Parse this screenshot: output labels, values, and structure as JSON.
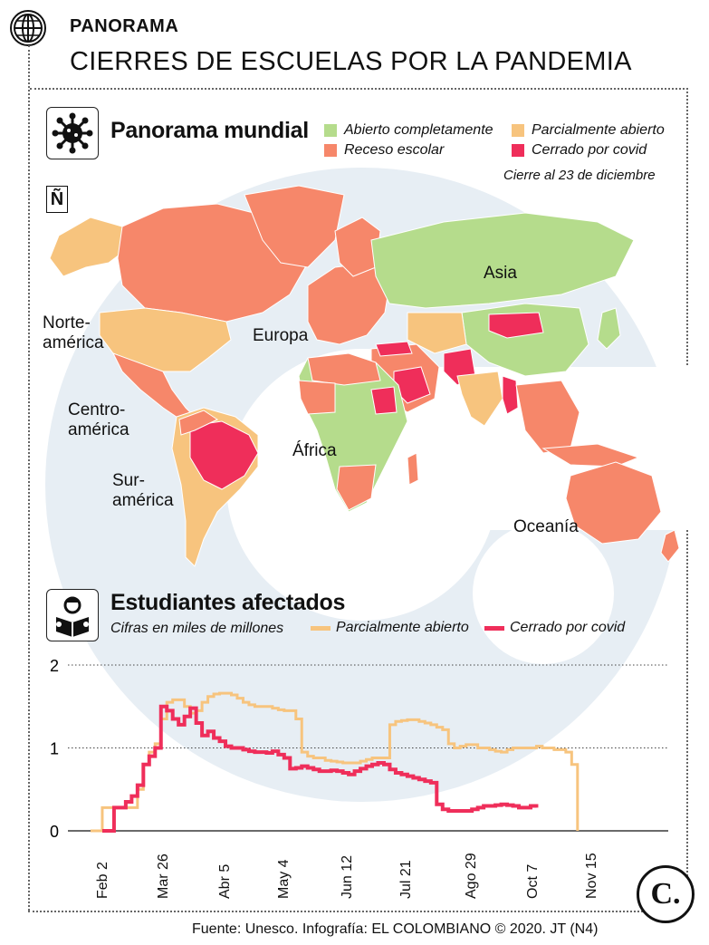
{
  "header": {
    "section": "PANORAMA",
    "title": "CIERRES DE ESCUELAS POR LA PANDEMIA"
  },
  "map": {
    "title": "Panorama mundial",
    "compass": "Ñ",
    "legend": [
      {
        "label": "Abierto completamente",
        "color": "#b5dc8c"
      },
      {
        "label": "Parcialmente abierto",
        "color": "#f7c47e"
      },
      {
        "label": "Receso escolar",
        "color": "#f6876a"
      },
      {
        "label": "Cerrado por covid",
        "color": "#ef2e5a"
      }
    ],
    "note": "Cierre al 23 de diciembre",
    "regions": {
      "north_america": "Norte-\namérica",
      "central_america": "Centro-\namérica",
      "south_america": "Sur-\namérica",
      "europe": "Europa",
      "africa": "África",
      "asia": "Asia",
      "oceania": "Oceanía"
    }
  },
  "chart": {
    "title": "Estudiantes afectados",
    "units": "Cifras en miles de millones"
  },
  "chart_data": {
    "type": "line",
    "title": "Estudiantes afectados",
    "subtitle": "Cifras en miles de millones",
    "ylim": [
      0,
      2
    ],
    "yticks": [
      "0",
      "1",
      "2"
    ],
    "xticks": [
      "Feb 2",
      "Mar 26",
      "Abr 5",
      "May 4",
      "Jun 12",
      "Jul 21",
      "Ago 29",
      "Oct 7",
      "Nov 15"
    ],
    "legend_position": "top",
    "grid": "dotted horizontal at 1 and 2",
    "series": [
      {
        "name": "Parcialmente abierto",
        "color": "#f7c47e",
        "x": [
          0,
          2,
          6,
          8,
          9,
          10,
          11,
          12,
          13,
          14,
          15,
          16,
          17,
          18,
          19,
          20,
          21,
          22,
          23,
          24,
          25,
          26,
          27,
          28,
          29,
          30,
          31,
          32,
          33,
          34,
          35,
          36,
          37,
          38,
          39,
          40,
          41,
          42,
          43,
          44,
          45,
          46,
          47,
          48,
          49,
          50,
          51,
          52,
          53,
          54,
          55,
          56,
          57,
          58,
          59,
          60,
          61,
          62,
          63,
          64,
          65,
          66,
          67,
          68,
          69,
          70,
          71,
          72,
          73,
          74,
          75,
          76,
          77,
          78,
          79,
          80,
          81,
          82,
          83,
          84,
          85,
          86,
          87,
          88,
          89,
          90,
          91,
          92,
          93,
          94,
          95,
          96,
          97,
          98
        ],
        "y": [
          0.0,
          0.28,
          0.28,
          0.5,
          0.8,
          0.95,
          1.05,
          1.35,
          1.55,
          1.58,
          1.58,
          1.5,
          1.42,
          1.45,
          1.55,
          1.62,
          1.65,
          1.66,
          1.66,
          1.64,
          1.6,
          1.55,
          1.52,
          1.5,
          1.5,
          1.5,
          1.48,
          1.46,
          1.45,
          1.45,
          1.35,
          0.95,
          0.9,
          0.88,
          0.88,
          0.85,
          0.84,
          0.83,
          0.82,
          0.82,
          0.82,
          0.84,
          0.86,
          0.88,
          0.88,
          0.88,
          1.28,
          1.32,
          1.33,
          1.34,
          1.34,
          1.32,
          1.3,
          1.28,
          1.25,
          1.22,
          1.05,
          1.0,
          1.02,
          1.04,
          1.04,
          1.0,
          1.0,
          0.98,
          0.96,
          0.95,
          0.98,
          1.0,
          1.0,
          1.0,
          1.0,
          1.02,
          1.0,
          1.0,
          0.98,
          0.98,
          0.95,
          0.8,
          0.0,
          0,
          0,
          0,
          0,
          0,
          0,
          0,
          0,
          0,
          0,
          0,
          0,
          0,
          0,
          0
        ],
        "end_index": 78
      },
      {
        "name": "Cerrado por covid",
        "color": "#ef2e5a",
        "x": [
          2,
          4,
          6,
          7,
          8,
          9,
          10,
          11,
          12,
          13,
          14,
          15,
          16,
          17,
          18,
          19,
          20,
          21,
          22,
          23,
          24,
          25,
          26,
          27,
          28,
          29,
          30,
          31,
          32,
          33,
          34,
          35,
          36,
          37,
          38,
          39,
          40,
          41,
          42,
          43,
          44,
          45,
          46,
          47,
          48,
          49,
          50,
          51,
          52,
          53,
          54,
          55,
          56,
          57,
          58,
          59,
          60,
          61,
          62,
          63,
          64,
          65,
          66,
          67,
          68,
          69,
          70,
          71,
          72,
          73,
          74,
          75,
          76,
          77,
          78,
          79,
          80,
          81,
          82,
          83,
          84,
          85,
          86,
          87,
          88
        ],
        "y": [
          0.0,
          0.28,
          0.35,
          0.42,
          0.55,
          0.8,
          0.9,
          1.0,
          1.5,
          1.45,
          1.35,
          1.28,
          1.38,
          1.48,
          1.3,
          1.15,
          1.2,
          1.12,
          1.08,
          1.02,
          1.0,
          1.0,
          0.98,
          0.96,
          0.95,
          0.95,
          0.94,
          0.96,
          0.92,
          0.88,
          0.75,
          0.76,
          0.78,
          0.76,
          0.74,
          0.72,
          0.72,
          0.73,
          0.72,
          0.7,
          0.68,
          0.72,
          0.75,
          0.78,
          0.8,
          0.82,
          0.8,
          0.74,
          0.7,
          0.68,
          0.66,
          0.64,
          0.62,
          0.6,
          0.58,
          0.32,
          0.26,
          0.24,
          0.24,
          0.24,
          0.24,
          0.26,
          0.28,
          0.3,
          0.3,
          0.31,
          0.32,
          0.31,
          0.3,
          0.28,
          0.28,
          0.3,
          0.28,
          0.24,
          0,
          0,
          0,
          0,
          0,
          0,
          0,
          0,
          0,
          0,
          0
        ],
        "end_index": 72
      }
    ]
  },
  "footer": {
    "source": "Fuente: Unesco. Infografía: EL COLOMBIANO © 2020. JT (N4)",
    "logo": "C."
  }
}
